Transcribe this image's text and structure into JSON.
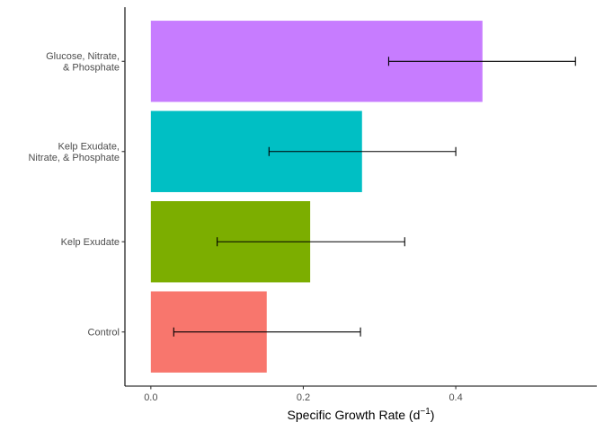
{
  "chart_data": {
    "type": "bar",
    "orientation": "horizontal",
    "title": "",
    "xlabel": {
      "main": "Specific Growth Rate (d",
      "sup": "−1",
      "tail": ")"
    },
    "ylabel": "",
    "xlim": [
      -0.034,
      0.585
    ],
    "x_ticks": [
      0.0,
      0.2,
      0.4
    ],
    "x_tick_labels": [
      "0.0",
      "0.2",
      "0.4"
    ],
    "grid": false,
    "legend": "none",
    "categories": [
      {
        "label_lines": [
          "Control"
        ],
        "value": 0.152,
        "error_low": 0.03,
        "error_high": 0.275,
        "color": "#F8766D"
      },
      {
        "label_lines": [
          "Kelp Exudate"
        ],
        "value": 0.209,
        "error_low": 0.087,
        "error_high": 0.333,
        "color": "#7CAE00"
      },
      {
        "label_lines": [
          "Kelp Exudate,",
          "Nitrate, & Phosphate"
        ],
        "value": 0.277,
        "error_low": 0.155,
        "error_high": 0.4,
        "color": "#00BFC4"
      },
      {
        "label_lines": [
          "Glucose, Nitrate,",
          "& Phosphate"
        ],
        "value": 0.435,
        "error_low": 0.312,
        "error_high": 0.557,
        "color": "#C77CFF"
      }
    ]
  }
}
